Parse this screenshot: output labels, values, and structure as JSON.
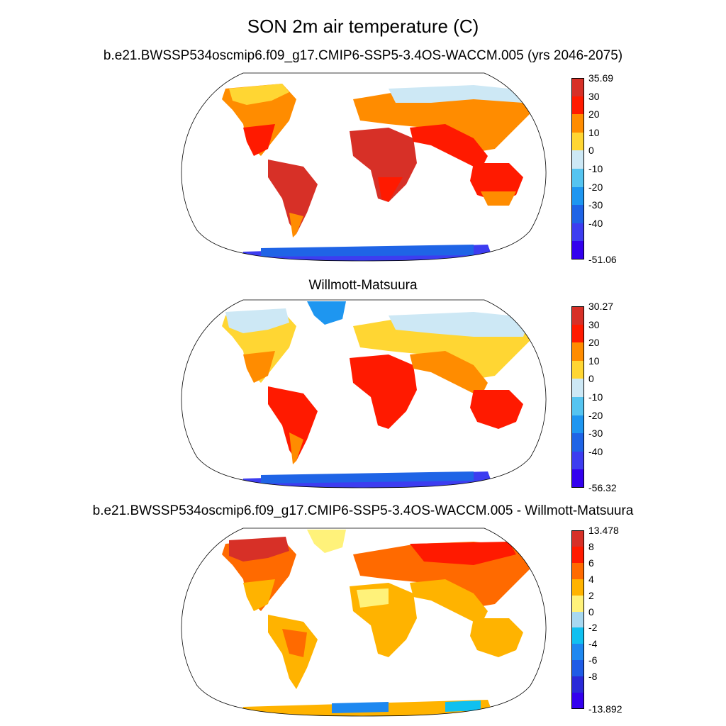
{
  "figure": {
    "title": "SON 2m air temperature (C)"
  },
  "panels": [
    {
      "title": "b.e21.BWSSP534oscmip6.f09_g17.CMIP6-SSP5-3.4OS-WACCM.005 (yrs 2046-2075)",
      "colorbar": {
        "labels": [
          "35.69",
          "30",
          "20",
          "10",
          "0",
          "-10",
          "-20",
          "-30",
          "-40",
          "-51.06"
        ],
        "colors": [
          "#d73027",
          "#ff1a00",
          "#ff8c00",
          "#ffd633",
          "#cde8f5",
          "#55c4f0",
          "#1e96f0",
          "#1f64e6",
          "#3d3df0",
          "#3300ee"
        ]
      }
    },
    {
      "title": "Willmott-Matsuura",
      "colorbar": {
        "labels": [
          "30.27",
          "30",
          "20",
          "10",
          "0",
          "-10",
          "-20",
          "-30",
          "-40",
          "-56.32"
        ],
        "colors": [
          "#d73027",
          "#ff1a00",
          "#ff8c00",
          "#ffd633",
          "#cde8f5",
          "#55c4f0",
          "#1e96f0",
          "#1f64e6",
          "#3d3df0",
          "#3300ee"
        ]
      }
    },
    {
      "title": "b.e21.BWSSP534oscmip6.f09_g17.CMIP6-SSP5-3.4OS-WACCM.005 - Willmott-Matsuura",
      "colorbar": {
        "labels": [
          "13.478",
          "8",
          "6",
          "4",
          "2",
          "0",
          "-2",
          "-4",
          "-6",
          "-8",
          "-13.892"
        ],
        "colors": [
          "#d73027",
          "#ff1a00",
          "#ff6a00",
          "#ffb300",
          "#fff27a",
          "#a8d8f0",
          "#10c0f0",
          "#1e88f0",
          "#1f5ce6",
          "#2a2ad8",
          "#3300ee"
        ]
      }
    }
  ]
}
